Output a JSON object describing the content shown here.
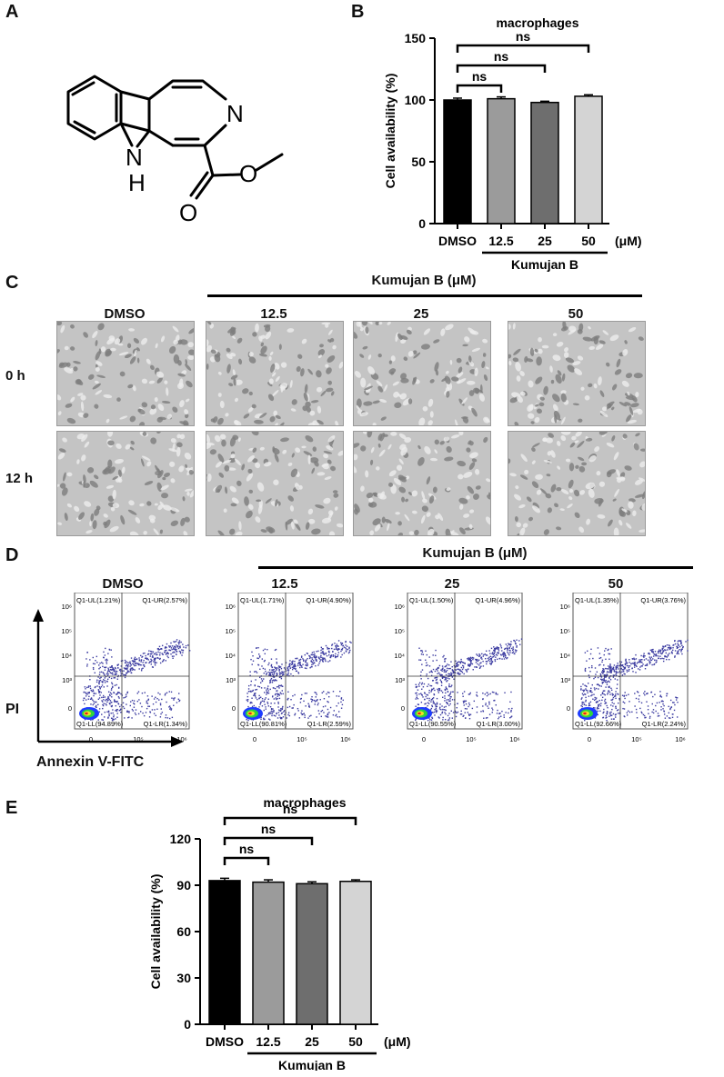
{
  "panels": {
    "a": {
      "letter": "A",
      "structure": {
        "atom_n": "N",
        "atom_nh_n": "N",
        "atom_nh_h": "H",
        "atom_o1": "O",
        "atom_o2": "O"
      }
    },
    "b": {
      "letter": "B"
    },
    "c": {
      "letter": "C",
      "header": "Kumujan B (μM)",
      "columns": [
        "DMSO",
        "12.5",
        "25",
        "50"
      ],
      "rows": [
        "0 h",
        "12 h"
      ]
    },
    "d": {
      "letter": "D",
      "header": "Kumujan B (μM)",
      "columns": [
        "DMSO",
        "12.5",
        "25",
        "50"
      ],
      "y_axis_label": "PI",
      "x_axis_label": "Annexin V-FITC",
      "y_ticks": [
        "10⁶",
        "10⁵",
        "10⁴",
        "10³",
        "0"
      ],
      "x_ticks": [
        "0",
        "10⁵",
        "10⁶"
      ],
      "plots": [
        {
          "ul": "Q1-UL(1.21%)",
          "ur": "Q1-UR(2.57%)",
          "ll": "Q1-LL(94.89%)",
          "lr": "Q1-LR(1.34%)"
        },
        {
          "ul": "Q1-UL(1.71%)",
          "ur": "Q1-UR(4.90%)",
          "ll": "Q1-LL(90.81%)",
          "lr": "Q1-LR(2.59%)"
        },
        {
          "ul": "Q1-UL(1.50%)",
          "ur": "Q1-UR(4.96%)",
          "ll": "Q1-LL(90.55%)",
          "lr": "Q1-LR(3.00%)"
        },
        {
          "ul": "Q1-UL(1.35%)",
          "ur": "Q1-UR(3.76%)",
          "ll": "Q1-LL(92.66%)",
          "lr": "Q1-LR(2.24%)"
        }
      ]
    },
    "e": {
      "letter": "E"
    }
  },
  "chart_data": [
    {
      "type": "bar",
      "panel": "B",
      "title": "macrophages",
      "xlabel": "",
      "ylabel": "Cell availability (%)",
      "ylim": [
        0,
        150
      ],
      "yticks": [
        0,
        50,
        100,
        150
      ],
      "categories": [
        "DMSO",
        "12.5",
        "25",
        "50"
      ],
      "values": [
        100,
        101,
        98,
        103
      ],
      "errors": [
        1.5,
        1.5,
        1,
        1.2
      ],
      "bar_colors": [
        "#000000",
        "#9b9b9b",
        "#6e6e6e",
        "#d4d4d4"
      ],
      "unit_label": "(μM)",
      "group_label": "Kumujan B",
      "significance": [
        {
          "from": "DMSO",
          "to": "12.5",
          "label": "ns"
        },
        {
          "from": "DMSO",
          "to": "25",
          "label": "ns"
        },
        {
          "from": "DMSO",
          "to": "50",
          "label": "ns"
        }
      ]
    },
    {
      "type": "bar",
      "panel": "E",
      "title": "macrophages",
      "xlabel": "",
      "ylabel": "Cell availability (%)",
      "ylim": [
        0,
        120
      ],
      "yticks": [
        0,
        30,
        60,
        90,
        120
      ],
      "categories": [
        "DMSO",
        "12.5",
        "25",
        "50"
      ],
      "values": [
        93,
        92,
        91,
        92.5
      ],
      "errors": [
        1.5,
        1.5,
        1.2,
        1
      ],
      "bar_colors": [
        "#000000",
        "#9b9b9b",
        "#6e6e6e",
        "#d4d4d4"
      ],
      "unit_label": "(μM)",
      "group_label": "Kumujan B",
      "significance": [
        {
          "from": "DMSO",
          "to": "12.5",
          "label": "ns"
        },
        {
          "from": "DMSO",
          "to": "25",
          "label": "ns"
        },
        {
          "from": "DMSO",
          "to": "50",
          "label": "ns"
        }
      ]
    }
  ]
}
